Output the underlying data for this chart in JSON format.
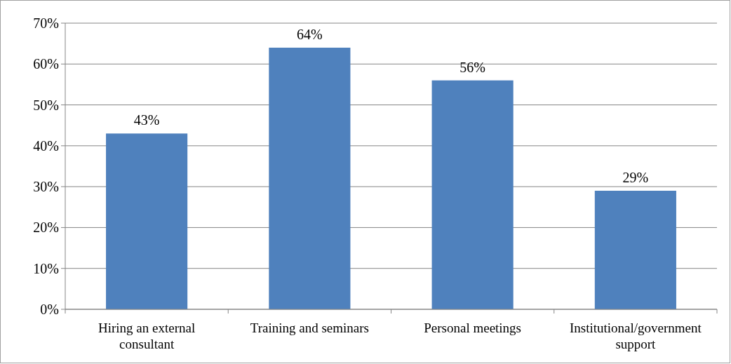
{
  "chart_data": {
    "type": "bar",
    "categories": [
      "Hiring an external consultant",
      "Training and seminars",
      "Personal meetings",
      "Institutional/government support"
    ],
    "values": [
      43,
      64,
      56,
      29
    ],
    "color": "#4f81bd",
    "ylim": [
      0,
      70
    ],
    "yticks": [
      {
        "value": 0,
        "label": "0%"
      },
      {
        "value": 10,
        "label": "10%"
      },
      {
        "value": 20,
        "label": "20%"
      },
      {
        "value": 30,
        "label": "30%"
      },
      {
        "value": 40,
        "label": "40%"
      },
      {
        "value": 50,
        "label": "50%"
      },
      {
        "value": 60,
        "label": "60%"
      },
      {
        "value": 70,
        "label": "70%"
      }
    ],
    "value_labels": [
      "43%",
      "64%",
      "56%",
      "29%"
    ],
    "grid": "y"
  }
}
